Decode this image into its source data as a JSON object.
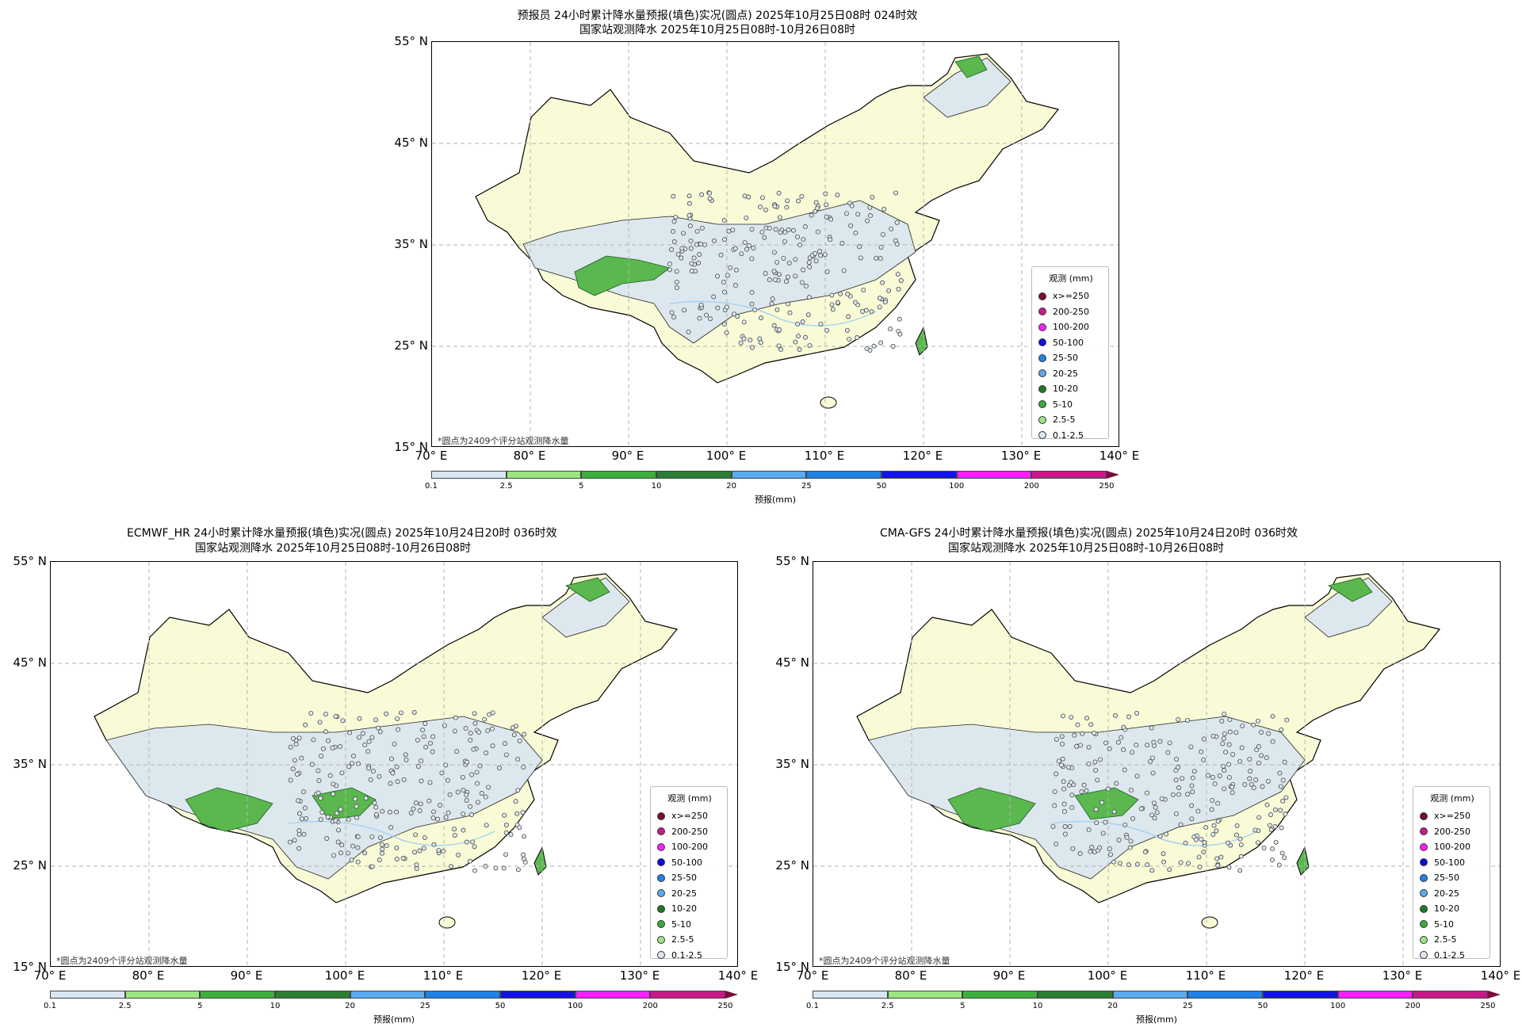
{
  "panels": [
    {
      "title_line1": "预报员 24小时累计降水量预报(填色)实况(圆点) 2025年10月25日08时 024时效",
      "title_line2": "国家站观测降水 2025年10月25日08时-10月26日08时"
    },
    {
      "title_line1": "ECMWF_HR 24小时累计降水量预报(填色)实况(圆点) 2025年10月24日20时 036时效",
      "title_line2": "国家站观测降水 2025年10月25日08时-10月26日08时"
    },
    {
      "title_line1": "CMA-GFS 24小时累计降水量预报(填色)实况(圆点) 2025年10月24日20时 036时效",
      "title_line2": "国家站观测降水 2025年10月25日08时-10月26日08时"
    }
  ],
  "lat_ticks": [
    "55° N",
    "45° N",
    "35° N",
    "25° N",
    "15° N"
  ],
  "lon_ticks": [
    "70° E",
    "80° E",
    "90° E",
    "100° E",
    "110° E",
    "120° E",
    "130° E",
    "140° E"
  ],
  "note": "*圆点为2409个评分站观测降水量",
  "legend": {
    "title": "观测 (mm)",
    "items": [
      {
        "label": "x>=250",
        "color": "#7a0c3a"
      },
      {
        "label": "200-250",
        "color": "#c8198a"
      },
      {
        "label": "100-200",
        "color": "#ff1eff"
      },
      {
        "label": "50-100",
        "color": "#0a0ae6"
      },
      {
        "label": "25-50",
        "color": "#1e82e6"
      },
      {
        "label": "20-25",
        "color": "#5aaaf0"
      },
      {
        "label": "10-20",
        "color": "#1e7a28"
      },
      {
        "label": "5-10",
        "color": "#3caa3c"
      },
      {
        "label": "2.5-5",
        "color": "#9ae682"
      },
      {
        "label": "0.1-2.5",
        "color": "#dce6f0"
      }
    ]
  },
  "colorbar": {
    "label": "预报(mm)",
    "ticks": [
      "0.1",
      "2.5",
      "5",
      "10",
      "20",
      "25",
      "50",
      "100",
      "200",
      "250"
    ],
    "colors": [
      "#d9e6f2",
      "#9be681",
      "#3daf3d",
      "#2a7d33",
      "#5aaaf0",
      "#1e82e6",
      "#1414e0",
      "#ff1eff",
      "#c8198a"
    ],
    "extend_color": "#7a0c3a"
  },
  "colors": {
    "land": "#f9fbd6",
    "light_rain": "#dde8ee",
    "grid": "#b4b4b4",
    "border": "#8ea0b0",
    "water": "#a9d2f2"
  }
}
